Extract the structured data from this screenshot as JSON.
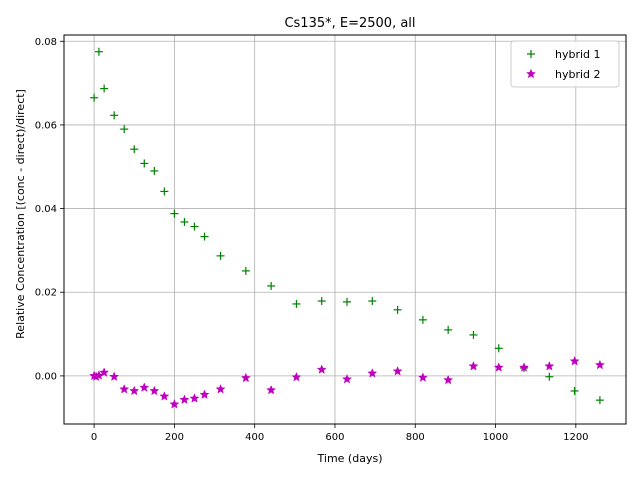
{
  "chart_data": {
    "type": "scatter",
    "title": "Cs135*, E=2500, all",
    "xlabel": "Time (days)",
    "ylabel": "Relative Concentration [(conc - direct)/direct]",
    "xlim": [
      -75,
      1325
    ],
    "ylim": [
      -0.0115,
      0.0815
    ],
    "xticks": [
      0,
      200,
      400,
      600,
      800,
      1000,
      1200
    ],
    "yticks": [
      0.0,
      0.02,
      0.04,
      0.06,
      0.08
    ],
    "ytick_labels": [
      "0.00",
      "0.02",
      "0.04",
      "0.06",
      "0.08"
    ],
    "grid": true,
    "legend_position": "top-right",
    "series": [
      {
        "name": "hybrid 1",
        "marker": "plus",
        "color": "#008000",
        "points": [
          [
            0,
            0.0665
          ],
          [
            12,
            0.0775
          ],
          [
            25,
            0.0687
          ],
          [
            50,
            0.0623
          ],
          [
            75,
            0.059
          ],
          [
            100,
            0.0542
          ],
          [
            125,
            0.0508
          ],
          [
            150,
            0.049
          ],
          [
            175,
            0.0441
          ],
          [
            200,
            0.0388
          ],
          [
            225,
            0.0368
          ],
          [
            250,
            0.0357
          ],
          [
            275,
            0.0333
          ],
          [
            315,
            0.0287
          ],
          [
            378,
            0.0251
          ],
          [
            441,
            0.0215
          ],
          [
            504,
            0.0172
          ],
          [
            567,
            0.0179
          ],
          [
            630,
            0.0177
          ],
          [
            693,
            0.0179
          ],
          [
            756,
            0.0158
          ],
          [
            819,
            0.0134
          ],
          [
            882,
            0.011
          ],
          [
            945,
            0.0098
          ],
          [
            1008,
            0.0066
          ],
          [
            1071,
            0.0019
          ],
          [
            1134,
            -0.0002
          ],
          [
            1197,
            -0.0036
          ],
          [
            1260,
            -0.0058
          ]
        ]
      },
      {
        "name": "hybrid 2",
        "marker": "star",
        "color": "#bf00bf",
        "points": [
          [
            0,
            0.0
          ],
          [
            5,
            -0.0002
          ],
          [
            12,
            0.0001
          ],
          [
            25,
            0.0008
          ],
          [
            50,
            -0.0002
          ],
          [
            75,
            -0.0032
          ],
          [
            100,
            -0.0036
          ],
          [
            125,
            -0.0028
          ],
          [
            150,
            -0.0036
          ],
          [
            175,
            -0.0049
          ],
          [
            200,
            -0.0068
          ],
          [
            225,
            -0.0057
          ],
          [
            250,
            -0.0054
          ],
          [
            275,
            -0.0045
          ],
          [
            315,
            -0.0032
          ],
          [
            378,
            -0.0005
          ],
          [
            441,
            -0.0034
          ],
          [
            504,
            -0.0003
          ],
          [
            567,
            0.0015
          ],
          [
            630,
            -0.0008
          ],
          [
            693,
            0.0006
          ],
          [
            756,
            0.0011
          ],
          [
            819,
            -0.0004
          ],
          [
            882,
            -0.001
          ],
          [
            945,
            0.0023
          ],
          [
            1008,
            0.002
          ],
          [
            1071,
            0.002
          ],
          [
            1134,
            0.0023
          ],
          [
            1197,
            0.0035
          ],
          [
            1260,
            0.0026
          ]
        ]
      }
    ]
  }
}
